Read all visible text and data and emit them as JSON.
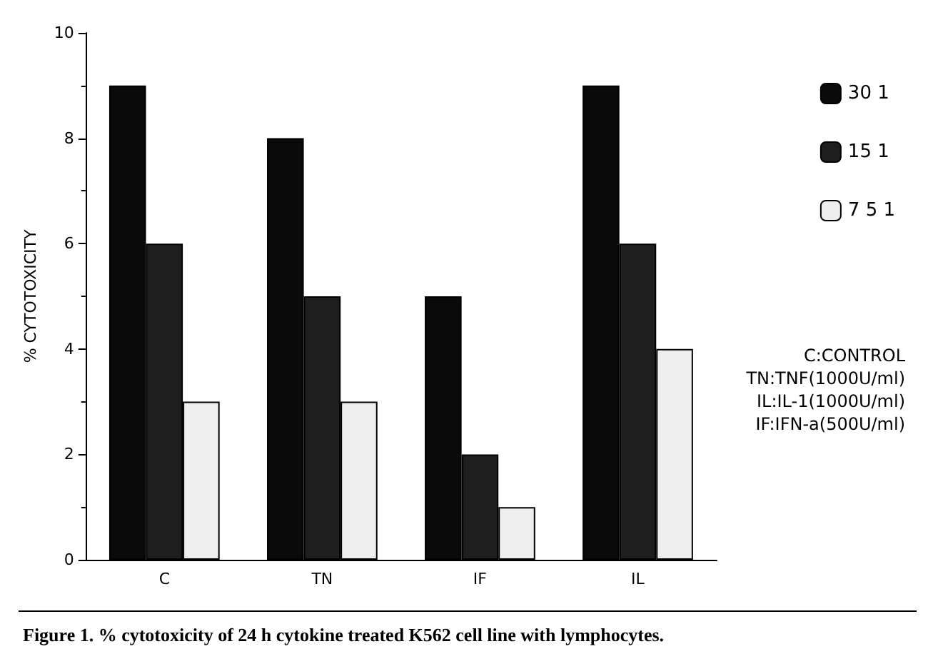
{
  "chart_data": {
    "type": "bar",
    "ylabel": "% CYTOTOXICITY",
    "categories": [
      "C",
      "TN",
      "IF",
      "IL"
    ],
    "series": [
      {
        "name": "30 1",
        "color": "#0a0a0a",
        "values": [
          9,
          8,
          5,
          9
        ]
      },
      {
        "name": "15 1",
        "color": "#1e1e1e",
        "values": [
          6,
          5,
          2,
          6
        ]
      },
      {
        "name": "7 5 1",
        "color": "#eeeeee",
        "values": [
          3,
          3,
          1,
          4
        ]
      }
    ],
    "ylim": [
      0,
      10
    ],
    "yticks": [
      0,
      2,
      4,
      6,
      8,
      10
    ],
    "grid": false,
    "legend": "top right",
    "annotations": [
      "C:CONTROL",
      "TN:TNF(1000U/ml)",
      "IL:IL-1(1000U/ml)",
      "IF:IFN-a(500U/ml)",
      "Figure 1. % cytotoxicity of 24 h cytokine treated K562 cell line with lymphocytes."
    ]
  }
}
